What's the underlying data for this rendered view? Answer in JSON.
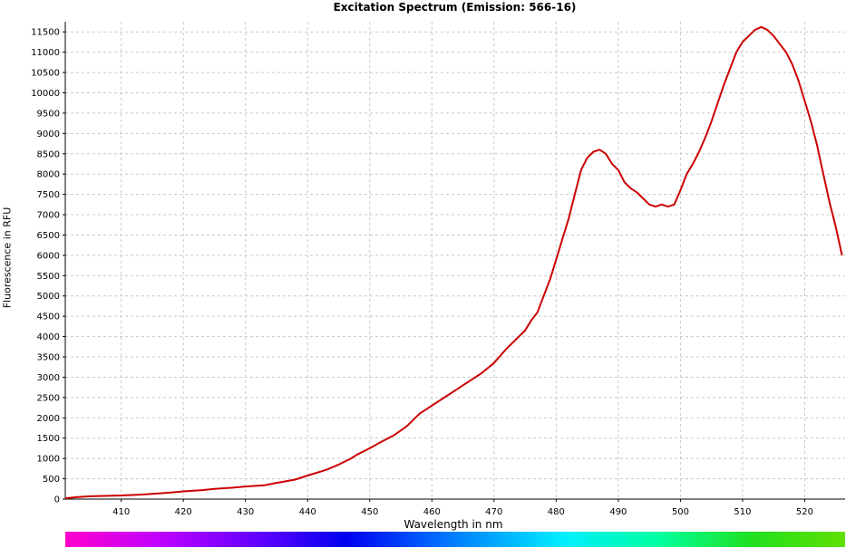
{
  "chart_data": {
    "type": "line",
    "title": "Excitation Spectrum (Emission: 566-16)",
    "xlabel": "Wavelength in nm",
    "ylabel": "Fluorescence in RFU",
    "xlim": [
      401,
      526.5
    ],
    "ylim": [
      0,
      11750
    ],
    "xticks": [
      410,
      420,
      430,
      440,
      450,
      460,
      470,
      480,
      490,
      500,
      510,
      520
    ],
    "yticks": [
      0,
      500,
      1000,
      1500,
      2000,
      2500,
      3000,
      3500,
      4000,
      4500,
      5000,
      5500,
      6000,
      6500,
      7000,
      7500,
      8000,
      8500,
      9000,
      9500,
      10000,
      10500,
      11000,
      11500
    ],
    "grid": true,
    "wavelength_color_bar": true,
    "series": [
      {
        "color": "#cc0000",
        "x": [
          401,
          403,
          405,
          408,
          410,
          413,
          415,
          418,
          420,
          423,
          425,
          428,
          430,
          433,
          435,
          438,
          440,
          443,
          445,
          447,
          448,
          450,
          452,
          454,
          456,
          458,
          460,
          462,
          464,
          466,
          468,
          470,
          472,
          474,
          475,
          476,
          477,
          478,
          479,
          480,
          481,
          482,
          483,
          484,
          485,
          486,
          487,
          488,
          489,
          490,
          491,
          492,
          493,
          494,
          495,
          496,
          497,
          498,
          499,
          500,
          501,
          502,
          503,
          504,
          505,
          506,
          507,
          508,
          509,
          510,
          511,
          512,
          513,
          514,
          515,
          516,
          517,
          518,
          519,
          520,
          521,
          522,
          523,
          524,
          525,
          526
        ],
        "y": [
          20,
          50,
          70,
          80,
          90,
          110,
          130,
          160,
          190,
          220,
          250,
          280,
          310,
          340,
          400,
          480,
          580,
          720,
          850,
          1000,
          1100,
          1250,
          1420,
          1580,
          1800,
          2100,
          2300,
          2500,
          2700,
          2900,
          3100,
          3350,
          3700,
          4000,
          4150,
          4400,
          4600,
          5000,
          5400,
          5900,
          6400,
          6900,
          7500,
          8100,
          8400,
          8550,
          8600,
          8500,
          8250,
          8100,
          7800,
          7650,
          7550,
          7400,
          7250,
          7200,
          7250,
          7200,
          7250,
          7600,
          8000,
          8250,
          8550,
          8900,
          9300,
          9750,
          10200,
          10600,
          11000,
          11250,
          11400,
          11550,
          11620,
          11550,
          11400,
          11200,
          11000,
          10700,
          10300,
          9800,
          9300,
          8700,
          8000,
          7300,
          6700,
          6000
        ]
      }
    ]
  }
}
